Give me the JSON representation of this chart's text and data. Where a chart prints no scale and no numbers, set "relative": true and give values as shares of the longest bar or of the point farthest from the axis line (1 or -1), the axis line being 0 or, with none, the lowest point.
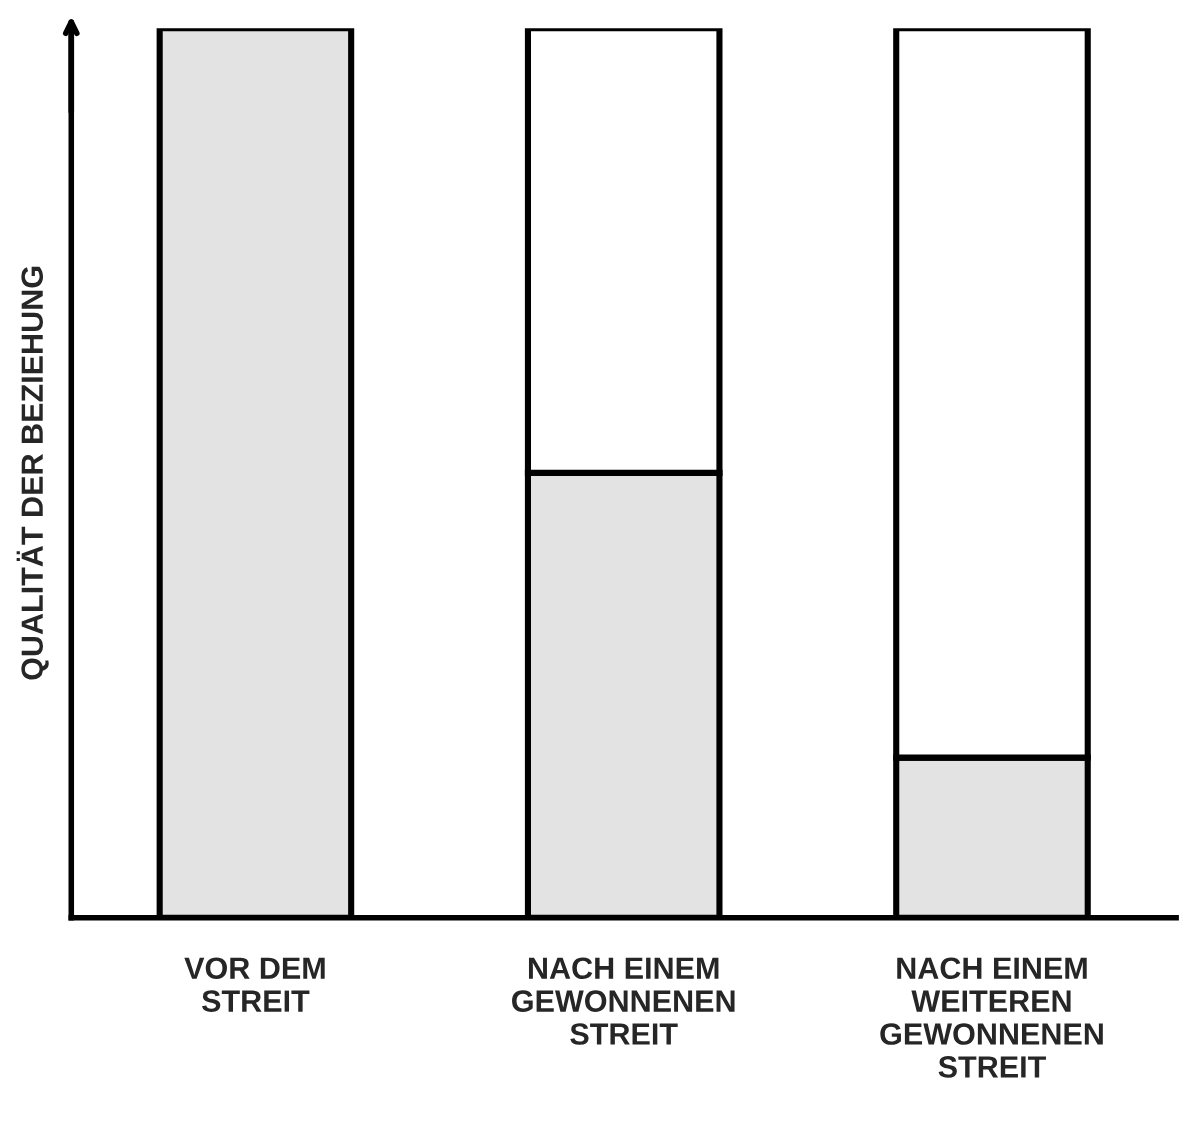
{
  "chart_data": {
    "type": "bar",
    "relative": true,
    "stacked": true,
    "ylabel": "QUALITÄT DER BEZIEHUNG",
    "categories": [
      "VOR DEM\nSTREIT",
      "NACH EINEM\nGEWONNENEN\nSTREIT",
      "NACH EINEM\nWEITEREN\nGEWONNENEN\nSTREIT"
    ],
    "series": [
      {
        "color": "#e3e3e3",
        "values": [
          1.0,
          0.5,
          0.18
        ]
      },
      {
        "color": "#ffffff",
        "values": [
          null,
          0.5,
          0.82
        ]
      }
    ],
    "tick_labels": "x"
  }
}
